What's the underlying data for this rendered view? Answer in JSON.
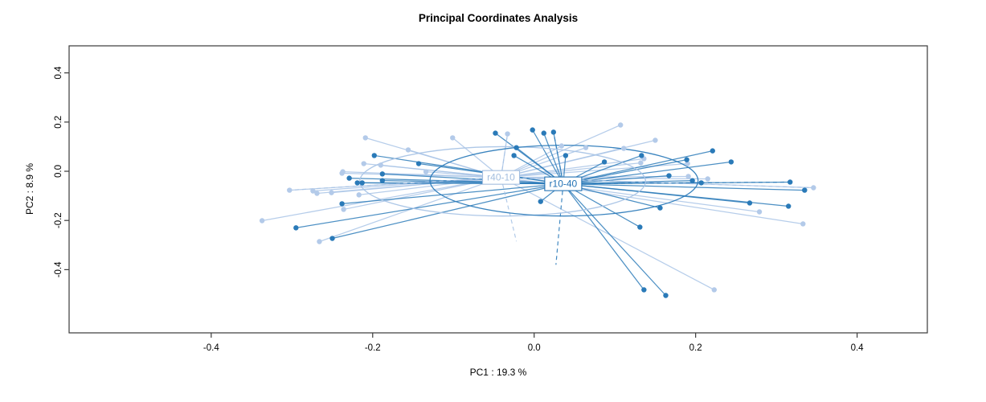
{
  "chart_data": {
    "type": "scatter",
    "title": "Principal Coordinates Analysis",
    "xlabel": "PC1 : 19.3 %",
    "ylabel": "PC2 : 8.9 %",
    "xlim": [
      -0.576,
      0.487
    ],
    "ylim": [
      -0.657,
      0.51
    ],
    "xtick_values": [
      -0.4,
      -0.2,
      0.0,
      0.2,
      0.4
    ],
    "xtick_labels": [
      "-0.4",
      "-0.2",
      "0.0",
      "0.2",
      "0.4"
    ],
    "ytick_values": [
      -0.4,
      -0.2,
      0.0,
      0.2,
      0.4
    ],
    "ytick_labels": [
      "-0.4",
      "-0.2",
      "0.0",
      "0.2",
      "0.4"
    ],
    "grid": false,
    "legend_position": "none-labels-at-centroids",
    "box_color": "#3a3a3a",
    "groups": [
      {
        "name": "r40-10",
        "point_color": "#b3cae9",
        "line_color": "#a9c4e6",
        "label_text_color": "#a3bedf",
        "centroid": [
          -0.041,
          -0.025
        ],
        "ellipse": {
          "cx": -0.039,
          "cy": -0.041,
          "rx": 0.177,
          "ry": 0.141
        },
        "points": [
          [
            -0.209,
            0.136
          ],
          [
            -0.156,
            0.087
          ],
          [
            -0.134,
            -0.002
          ],
          [
            -0.237,
            -0.002
          ],
          [
            -0.303,
            -0.077
          ],
          [
            -0.274,
            -0.08
          ],
          [
            -0.269,
            -0.09
          ],
          [
            -0.251,
            -0.087
          ],
          [
            -0.217,
            -0.096
          ],
          [
            -0.236,
            -0.155
          ],
          [
            -0.337,
            -0.201
          ],
          [
            -0.266,
            -0.286
          ],
          [
            -0.211,
            0.031
          ],
          [
            -0.19,
            0.025
          ],
          [
            -0.238,
            -0.008
          ],
          [
            -0.101,
            0.136
          ],
          [
            -0.033,
            0.152
          ],
          [
            0.034,
            0.103
          ],
          [
            0.064,
            0.096
          ],
          [
            0.107,
            0.188
          ],
          [
            0.111,
            0.093
          ],
          [
            0.136,
            0.051
          ],
          [
            0.132,
            0.034
          ],
          [
            0.15,
            0.126
          ],
          [
            0.19,
            0.031
          ],
          [
            0.191,
            -0.021
          ],
          [
            0.215,
            -0.031
          ],
          [
            0.346,
            -0.067
          ],
          [
            0.279,
            -0.165
          ],
          [
            0.333,
            -0.214
          ],
          [
            0.223,
            -0.482
          ]
        ]
      },
      {
        "name": "r10-40",
        "point_color": "#2a7ab8",
        "line_color": "#2e7cba",
        "label_text_color": "#2272b4",
        "centroid": [
          0.036,
          -0.051
        ],
        "ellipse": {
          "cx": 0.037,
          "cy": -0.038,
          "rx": 0.166,
          "ry": 0.144
        },
        "points": [
          [
            -0.198,
            0.064
          ],
          [
            -0.143,
            0.031
          ],
          [
            -0.048,
            0.155
          ],
          [
            -0.022,
            0.096
          ],
          [
            -0.025,
            0.064
          ],
          [
            -0.002,
            0.168
          ],
          [
            0.012,
            0.155
          ],
          [
            0.024,
            0.159
          ],
          [
            0.039,
            0.064
          ],
          [
            0.087,
            0.038
          ],
          [
            0.133,
            0.064
          ],
          [
            0.189,
            0.047
          ],
          [
            0.221,
            0.083
          ],
          [
            0.244,
            0.038
          ],
          [
            -0.229,
            -0.028
          ],
          [
            -0.219,
            -0.047
          ],
          [
            -0.213,
            -0.047
          ],
          [
            -0.188,
            -0.038
          ],
          [
            -0.188,
            -0.011
          ],
          [
            -0.238,
            -0.132
          ],
          [
            -0.295,
            -0.23
          ],
          [
            -0.25,
            -0.273
          ],
          [
            0.008,
            -0.123
          ],
          [
            0.156,
            -0.149
          ],
          [
            0.131,
            -0.227
          ],
          [
            0.136,
            -0.482
          ],
          [
            0.163,
            -0.505
          ],
          [
            0.167,
            -0.018
          ],
          [
            0.196,
            -0.038
          ],
          [
            0.207,
            -0.047
          ],
          [
            0.317,
            -0.044
          ],
          [
            0.335,
            -0.077
          ],
          [
            0.315,
            -0.142
          ],
          [
            0.267,
            -0.129
          ]
        ]
      }
    ],
    "dashed_segments": [
      {
        "group": "r40-10",
        "to": [
          -0.033,
          0.152
        ]
      },
      {
        "group": "r40-10",
        "to": [
          0.346,
          -0.067
        ]
      },
      {
        "group": "r40-10",
        "to": [
          -0.303,
          -0.077
        ]
      },
      {
        "group": "r40-10",
        "to": [
          -0.022,
          -0.285
        ]
      },
      {
        "group": "r10-40",
        "to": [
          0.024,
          0.159
        ]
      },
      {
        "group": "r10-40",
        "to": [
          0.027,
          -0.38
        ]
      },
      {
        "group": "r10-40",
        "to": [
          0.317,
          -0.044
        ]
      }
    ]
  }
}
